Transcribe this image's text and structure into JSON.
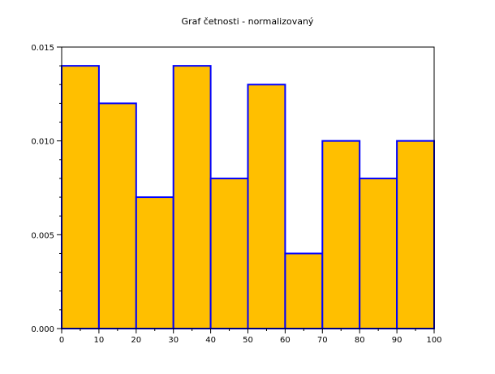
{
  "chart_data": {
    "type": "bar",
    "title": "Graf četnosti - normalizovaný",
    "xlabel": "",
    "ylabel": "",
    "bin_edges": [
      0,
      10,
      20,
      30,
      40,
      50,
      60,
      70,
      80,
      90,
      100
    ],
    "values": [
      0.014,
      0.012,
      0.007,
      0.014,
      0.008,
      0.013,
      0.004,
      0.01,
      0.008,
      0.01
    ],
    "xlim": [
      0,
      100
    ],
    "ylim": [
      0,
      0.015
    ],
    "x_ticks": [
      "0",
      "10",
      "20",
      "30",
      "40",
      "50",
      "60",
      "70",
      "80",
      "90",
      "100"
    ],
    "y_ticks": [
      "0.000",
      "0.005",
      "0.010",
      "0.015"
    ],
    "grid": false,
    "bar_fill": "#ffbf00",
    "bar_edge": "#0000ff"
  }
}
